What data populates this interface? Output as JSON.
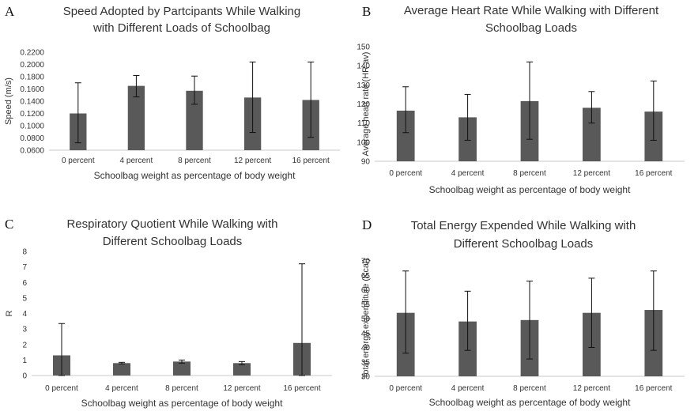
{
  "chart_data": [
    {
      "panel": "A",
      "type": "bar",
      "title_lines": [
        "Speed Adopted by Partcipants While Walking",
        "with Different Loads of Schoolbag"
      ],
      "xlabel": "Schoolbag weight as percentage of body weight",
      "ylabel": "Speed (m/s)",
      "categories": [
        "0 percent",
        "4 percent",
        "8 percent",
        "12 percent",
        "16 percent"
      ],
      "values": [
        0.12,
        0.165,
        0.157,
        0.146,
        0.142
      ],
      "error_low": [
        0.072,
        0.147,
        0.135,
        0.089,
        0.081
      ],
      "error_high": [
        0.17,
        0.182,
        0.181,
        0.204,
        0.204
      ],
      "yticks": [
        "0.0600",
        "0.0800",
        "0.1000",
        "0.1200",
        "0.1400",
        "0.1600",
        "0.1800",
        "0.2000",
        "0.2200"
      ],
      "ylim": [
        0.06,
        0.22
      ],
      "grid": false,
      "bar_color": "#595959"
    },
    {
      "panel": "B",
      "type": "bar",
      "title_lines": [
        "Average Heart Rate While Walking with Different",
        "Schoolbag Loads"
      ],
      "xlabel": "Schoolbag weight as percentage of body weight",
      "ylabel": "Average heart rate (HR av)",
      "categories": [
        "0 percent",
        "4 percent",
        "8 percent",
        "12 percent",
        "16 percent"
      ],
      "values": [
        116.5,
        113,
        121.5,
        118,
        116
      ],
      "error_low": [
        105,
        101,
        101.5,
        110,
        101
      ],
      "error_high": [
        129,
        125,
        142,
        126.5,
        132
      ],
      "yticks": [
        "90",
        "100",
        "110",
        "120",
        "130",
        "140",
        "150"
      ],
      "ylim": [
        90,
        150
      ],
      "grid": false,
      "bar_color": "#595959"
    },
    {
      "panel": "C",
      "type": "bar",
      "title_lines": [
        "Respiratory Quotient While Walking with",
        "Different Schoolbag Loads"
      ],
      "xlabel": "Schoolbag weight as percentage of body weight",
      "ylabel": "R",
      "categories": [
        "0 percent",
        "4 percent",
        "8 percent",
        "12 percent",
        "16 percent"
      ],
      "values": [
        1.3,
        0.8,
        0.9,
        0.8,
        2.1
      ],
      "error_low": [
        0,
        0.75,
        0.8,
        0.7,
        0
      ],
      "error_high": [
        3.35,
        0.85,
        1.0,
        0.9,
        7.2
      ],
      "yticks": [
        "0",
        "1",
        "2",
        "3",
        "4",
        "5",
        "6",
        "7",
        "8"
      ],
      "ylim": [
        0,
        8
      ],
      "grid": false,
      "bar_color": "#595959"
    },
    {
      "panel": "D",
      "type": "bar",
      "title_lines": [
        "Total Energy Expended While Walking with",
        "Different Schoolbag Loads"
      ],
      "xlabel": "Schoolbag weight as percentage of body weight",
      "ylabel": "Total energy expenditure (Kcal)",
      "categories": [
        "0 percent",
        "4 percent",
        "8 percent",
        "12 percent",
        "16 percent"
      ],
      "values": [
        52,
        49,
        49.5,
        52,
        53
      ],
      "error_low": [
        38,
        39,
        36,
        40,
        39
      ],
      "error_high": [
        66.5,
        59.5,
        63,
        64,
        66.5
      ],
      "yticks": [
        "30",
        "35",
        "40",
        "45",
        "50",
        "55",
        "60",
        "65",
        "70"
      ],
      "ylim": [
        30,
        70
      ],
      "grid": false,
      "bar_color": "#595959"
    }
  ]
}
